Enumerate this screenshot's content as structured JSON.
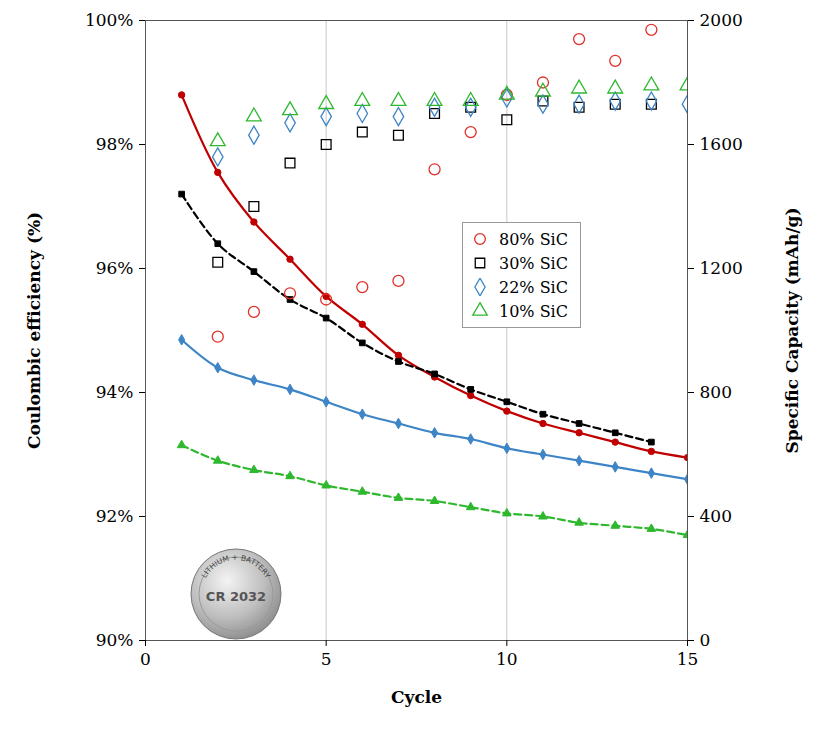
{
  "chart_data": {
    "type": "line",
    "x_label": "Cycle",
    "y_label": "Coulombic efficiency (%)",
    "y2_label": "Specific Capacity (mAh/g)",
    "x": [
      1,
      2,
      3,
      4,
      5,
      6,
      7,
      8,
      9,
      10,
      11,
      12,
      13,
      14,
      15
    ],
    "xlim": [
      0,
      15
    ],
    "xticks": [
      0,
      5,
      10,
      15
    ],
    "ylim": [
      90,
      100
    ],
    "yticks": [
      {
        "value": 90,
        "label": "90%"
      },
      {
        "value": 92,
        "label": "92%"
      },
      {
        "value": 94,
        "label": "94%"
      },
      {
        "value": 96,
        "label": "96%"
      },
      {
        "value": 98,
        "label": "98%"
      },
      {
        "value": 100,
        "label": "100%"
      }
    ],
    "y2lim": [
      0,
      2000
    ],
    "y2ticks": [
      0,
      400,
      800,
      1200,
      1600,
      2000
    ],
    "grid": "x",
    "legend": "right",
    "annotations": [
      "LITHIUM + BATTERY",
      "CR 2032"
    ],
    "series": [
      {
        "name": "80% SiC",
        "type": "scatter",
        "axis": "y",
        "color": "#e0302a",
        "marker": "circle-open",
        "values": [
          null,
          94.9,
          95.3,
          95.6,
          95.5,
          95.7,
          95.8,
          97.6,
          98.2,
          98.8,
          99.0,
          99.7,
          99.35,
          99.85,
          null
        ]
      },
      {
        "name": "30% SiC",
        "type": "scatter",
        "axis": "y",
        "color": "#000000",
        "marker": "square-open",
        "values": [
          null,
          96.1,
          97.0,
          97.7,
          98.0,
          98.2,
          98.15,
          98.5,
          98.6,
          98.4,
          98.7,
          98.6,
          98.65,
          98.65,
          null
        ]
      },
      {
        "name": "22% SiC",
        "type": "scatter",
        "axis": "y",
        "color": "#3d85c6",
        "marker": "diamond-open",
        "values": [
          null,
          97.8,
          98.15,
          98.35,
          98.45,
          98.5,
          98.45,
          98.6,
          98.6,
          98.75,
          98.65,
          98.65,
          98.7,
          98.7,
          98.65
        ]
      },
      {
        "name": "10% SiC",
        "type": "scatter",
        "axis": "y",
        "color": "#2eb82e",
        "marker": "triangle-open",
        "values": [
          null,
          98.05,
          98.45,
          98.55,
          98.65,
          98.7,
          98.7,
          98.7,
          98.7,
          98.8,
          98.85,
          98.9,
          98.9,
          98.95,
          98.95
        ]
      },
      {
        "type": "line",
        "axis": "y2",
        "color": "#c00000",
        "marker": "circle",
        "line_style": "solid",
        "values": [
          1760,
          1510,
          1350,
          1230,
          1110,
          1020,
          920,
          850,
          790,
          740,
          700,
          670,
          640,
          610,
          590
        ]
      },
      {
        "type": "line",
        "axis": "y2",
        "color": "#000000",
        "marker": "square",
        "line_style": "dashed",
        "values": [
          1440,
          1280,
          1190,
          1100,
          1040,
          960,
          900,
          860,
          810,
          770,
          730,
          700,
          670,
          640,
          null
        ]
      },
      {
        "type": "line",
        "axis": "y2",
        "color": "#3d85c6",
        "marker": "diamond",
        "line_style": "solid",
        "values": [
          970,
          880,
          840,
          810,
          770,
          730,
          700,
          670,
          650,
          620,
          600,
          580,
          560,
          540,
          520
        ]
      },
      {
        "type": "line",
        "axis": "y2",
        "color": "#2eb82e",
        "marker": "triangle",
        "line_style": "dashed",
        "values": [
          630,
          580,
          550,
          530,
          500,
          480,
          460,
          450,
          430,
          410,
          400,
          380,
          370,
          360,
          340
        ]
      }
    ]
  }
}
